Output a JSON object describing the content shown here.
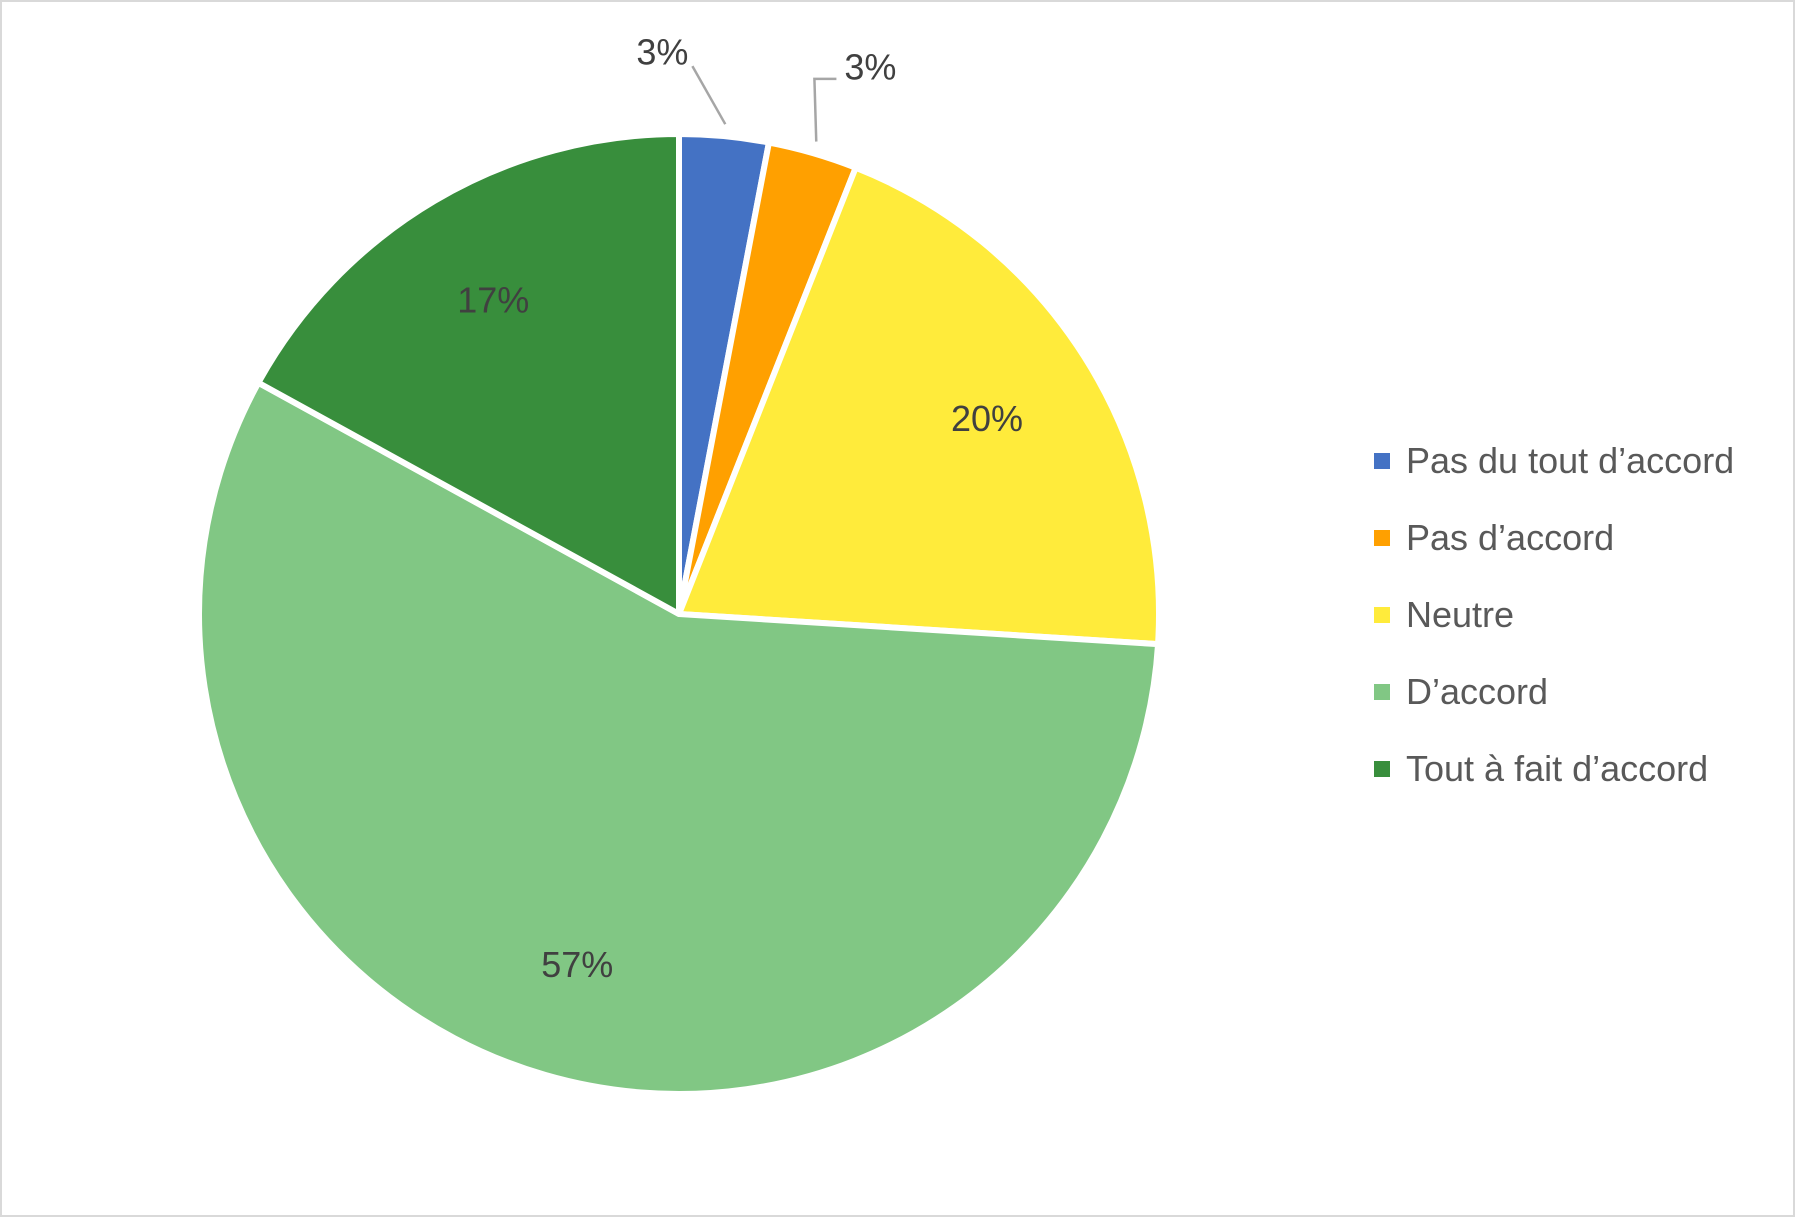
{
  "chart_data": {
    "type": "pie",
    "title": "",
    "legend_position": "right",
    "start_angle_deg": 0,
    "direction": "clockwise",
    "slices": [
      {
        "label": "Pas du tout d’accord",
        "value": 3,
        "display": "3%",
        "color": "#4472c4",
        "label_placement": "outside"
      },
      {
        "label": "Pas d’accord",
        "value": 3,
        "display": "3%",
        "color": "#ffa000",
        "label_placement": "outside"
      },
      {
        "label": "Neutre",
        "value": 20,
        "display": "20%",
        "color": "#ffeb3b",
        "label_placement": "inside"
      },
      {
        "label": "D’accord",
        "value": 57,
        "display": "57%",
        "color": "#81c784",
        "label_placement": "inside"
      },
      {
        "label": "Tout à fait d’accord",
        "value": 17,
        "display": "17%",
        "color": "#388e3c",
        "label_placement": "inside"
      }
    ]
  }
}
